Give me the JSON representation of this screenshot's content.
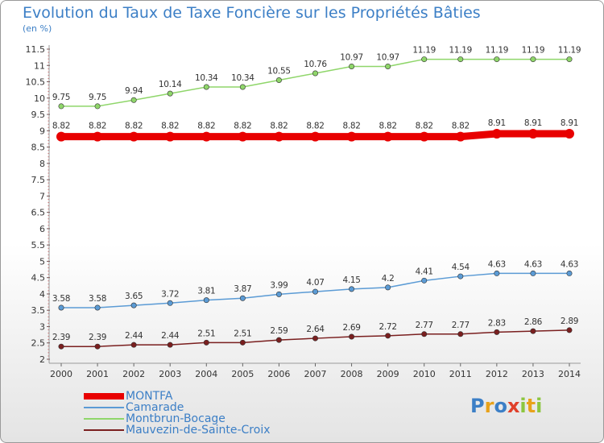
{
  "title": "Evolution du Taux de Taxe Foncière sur les Propriétés Bâties",
  "subtitle": "(en %)",
  "logo": {
    "p": "P",
    "r": "r",
    "o": "o",
    "x": "x",
    "i1": "i",
    "t": "t",
    "i2": "i"
  },
  "chart_data": {
    "type": "line",
    "title": "Evolution du Taux de Taxe Foncière sur les Propriétés Bâties",
    "ylabel": "(en %)",
    "xlabel": "",
    "x": [
      "2000",
      "2001",
      "2002",
      "2003",
      "2004",
      "2005",
      "2006",
      "2007",
      "2008",
      "2009",
      "2010",
      "2011",
      "2012",
      "2013",
      "2014"
    ],
    "yticks": [
      "2",
      "2.5",
      "3",
      "3.5",
      "4",
      "4.5",
      "5",
      "5.5",
      "6",
      "6.5",
      "7",
      "7.5",
      "8",
      "8.5",
      "9",
      "9.5",
      "10",
      "10.5",
      "11",
      "11.5"
    ],
    "ylim": [
      2,
      11.5
    ],
    "grid": false,
    "legend_position": "bottom-left",
    "series": [
      {
        "name": "MONTFA",
        "color": "#e80000",
        "values": [
          8.82,
          8.82,
          8.82,
          8.82,
          8.82,
          8.82,
          8.82,
          8.82,
          8.82,
          8.82,
          8.82,
          8.82,
          8.91,
          8.91,
          8.91
        ],
        "labels": [
          "8.82",
          "8.82",
          "8.82",
          "8.82",
          "8.82",
          "8.82",
          "8.82",
          "8.82",
          "8.82",
          "8.82",
          "8.82",
          "8.82",
          "8.91",
          "8.91",
          "8.91"
        ]
      },
      {
        "name": "Camarade",
        "color": "#5b9bd5",
        "values": [
          3.58,
          3.58,
          3.65,
          3.72,
          3.81,
          3.87,
          3.99,
          4.07,
          4.15,
          4.2,
          4.41,
          4.54,
          4.63,
          4.63,
          4.63
        ],
        "labels": [
          "3.58",
          "3.58",
          "3.65",
          "3.72",
          "3.81",
          "3.87",
          "3.99",
          "4.07",
          "4.15",
          "4.2",
          "4.41",
          "4.54",
          "4.63",
          "4.63",
          "4.63"
        ]
      },
      {
        "name": "Montbrun-Bocage",
        "color": "#8fd66a",
        "values": [
          9.75,
          9.75,
          9.94,
          10.14,
          10.34,
          10.34,
          10.55,
          10.76,
          10.97,
          10.97,
          11.19,
          11.19,
          11.19,
          11.19,
          11.19
        ],
        "labels": [
          "9.75",
          "9.75",
          "9.94",
          "10.14",
          "10.34",
          "10.34",
          "10.55",
          "10.76",
          "10.97",
          "10.97",
          "11.19",
          "11.19",
          "11.19",
          "11.19",
          "11.19"
        ]
      },
      {
        "name": "Mauvezin-de-Sainte-Croix",
        "color": "#7a1f1f",
        "values": [
          2.39,
          2.39,
          2.44,
          2.44,
          2.51,
          2.51,
          2.59,
          2.64,
          2.69,
          2.72,
          2.77,
          2.77,
          2.83,
          2.86,
          2.89
        ],
        "labels": [
          "2.39",
          "2.39",
          "2.44",
          "2.44",
          "2.51",
          "2.51",
          "2.59",
          "2.64",
          "2.69",
          "2.72",
          "2.77",
          "2.77",
          "2.83",
          "2.86",
          "2.89"
        ]
      }
    ]
  }
}
